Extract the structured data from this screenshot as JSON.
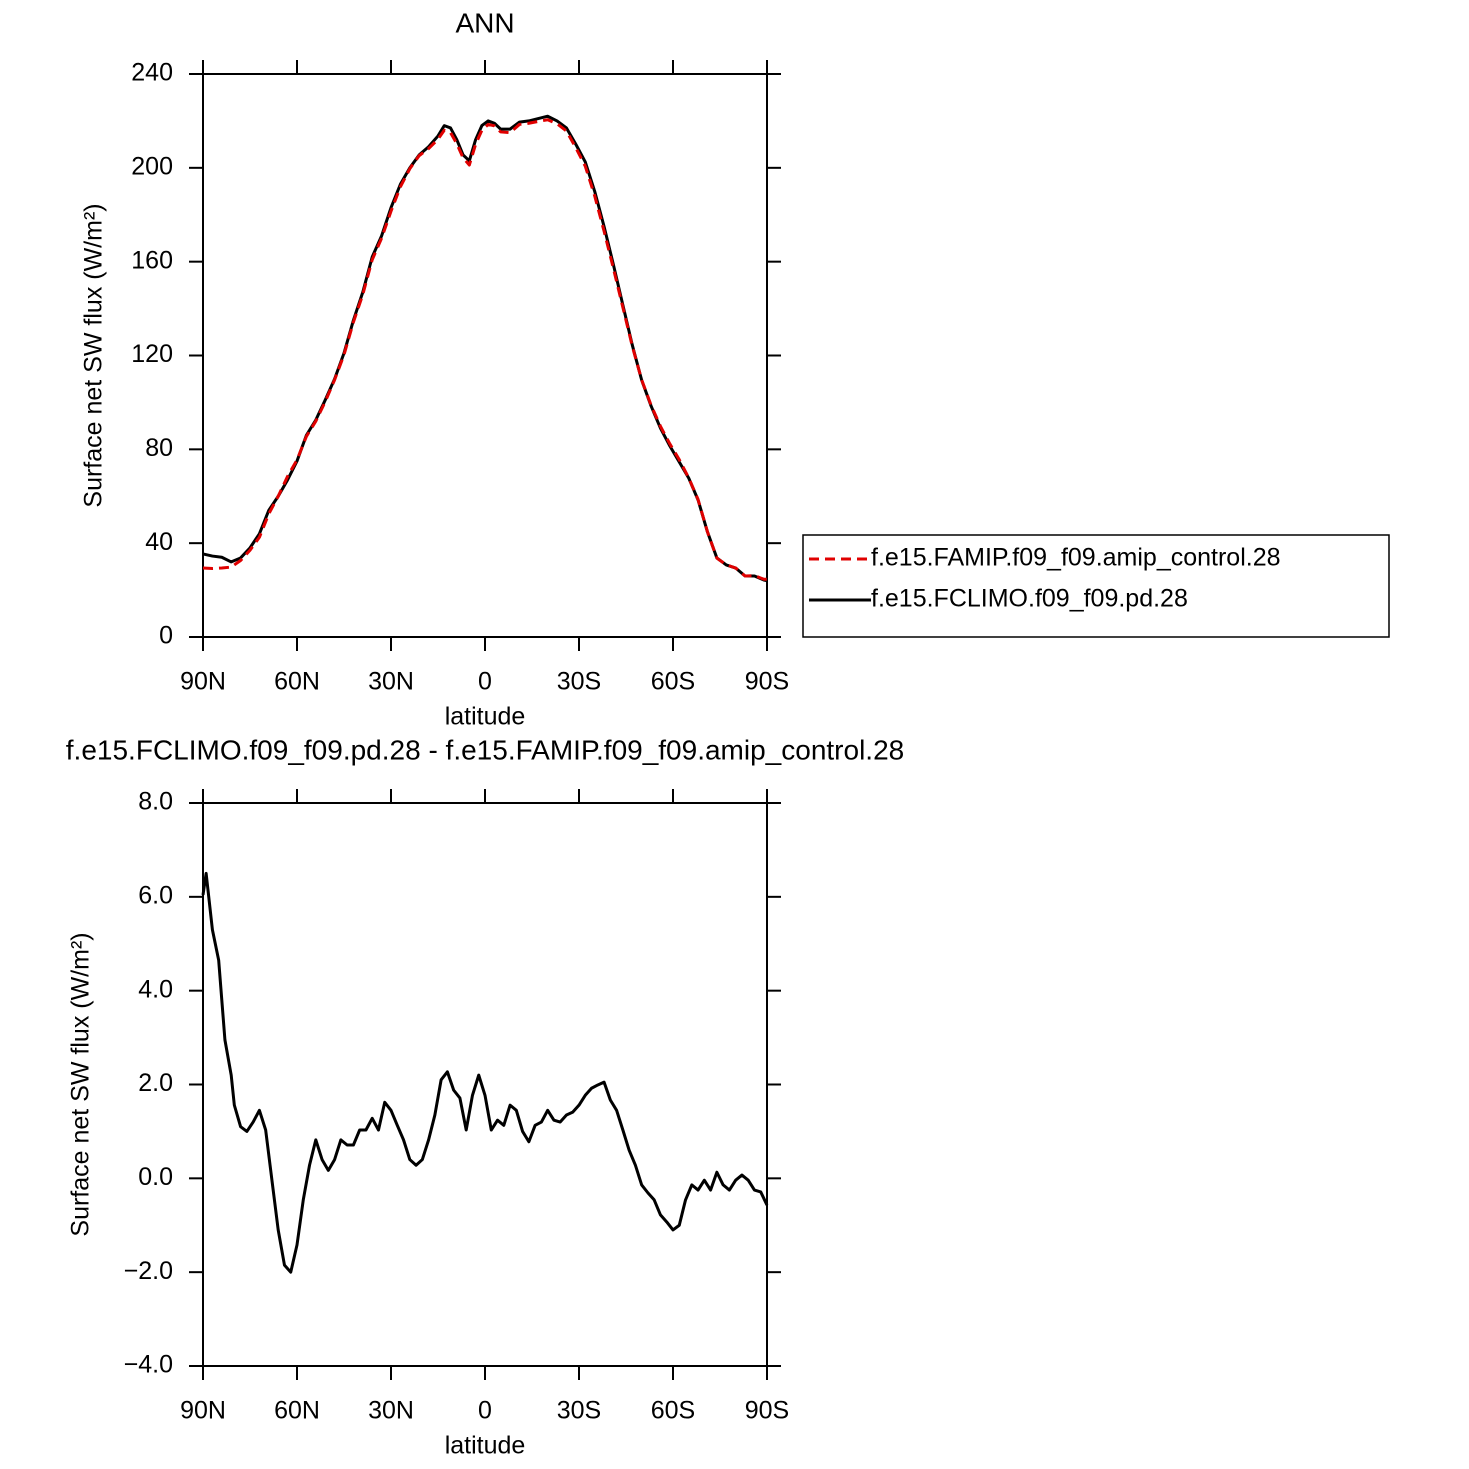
{
  "chart_data": [
    {
      "type": "line",
      "title": "ANN",
      "xlabel": "latitude",
      "ylabel": "Surface net SW flux (W/m²)",
      "x": [
        90,
        87,
        84,
        81,
        78,
        75,
        72,
        69,
        66,
        63,
        60,
        57,
        54,
        51,
        48,
        45,
        42,
        39,
        36,
        33,
        30,
        27,
        24,
        21,
        18,
        15,
        13,
        11,
        9,
        7,
        5,
        3,
        1,
        -1,
        -3,
        -5,
        -8,
        -11,
        -14,
        -17,
        -20,
        -23,
        -26,
        -29,
        -32,
        -35,
        -38,
        -41,
        -44,
        -47,
        -50,
        -53,
        -56,
        -59,
        -62,
        -65,
        -68,
        -71,
        -74,
        -77,
        -80,
        -83,
        -86,
        -89,
        -90
      ],
      "series": [
        {
          "name": "f.e15.FAMIP.f09_f09.amip_control.28",
          "color": "#e00000",
          "line_style": "dashed",
          "values": [
            29.4,
            29.2,
            29.4,
            29.8,
            32.6,
            37,
            42.5,
            52.5,
            60,
            68.5,
            75.5,
            85.5,
            92,
            100.3,
            109.6,
            120.3,
            134.2,
            146,
            160.8,
            170,
            181.5,
            191.9,
            199.6,
            205.2,
            208.2,
            212.2,
            216,
            215,
            210.3,
            204.3,
            201.2,
            210,
            216,
            218.5,
            217.9,
            215.3,
            215,
            218.5,
            219,
            219.8,
            220.5,
            218.8,
            215.7,
            208.5,
            200.7,
            188.1,
            173,
            157,
            140.5,
            124,
            109.6,
            98.8,
            89.8,
            82.3,
            75.6,
            67.9,
            58.6,
            44.8,
            33.6,
            30.8,
            29.4,
            26,
            26.2,
            24.6,
            24.6
          ]
        },
        {
          "name": "f.e15.FCLIMO.f09_f09.pd.28",
          "color": "#000000",
          "line_style": "solid",
          "values": [
            35.4,
            34.5,
            34,
            32,
            33.7,
            38,
            44,
            54,
            60,
            67,
            75,
            86,
            92.5,
            101,
            110,
            121,
            135,
            147,
            162,
            171,
            183,
            193,
            200,
            205.5,
            209,
            213.6,
            218,
            217,
            212,
            205.5,
            203,
            212,
            218,
            220,
            219,
            216.5,
            216.5,
            219.5,
            220,
            221,
            222,
            220,
            217,
            210,
            202.5,
            190,
            175,
            158.6,
            141.5,
            124.5,
            109.5,
            98.5,
            89,
            81.4,
            74.6,
            67.8,
            58.4,
            44.8,
            33.7,
            30.7,
            29.4,
            26,
            26,
            24.3,
            24
          ]
        }
      ],
      "xlim": [
        90,
        -90
      ],
      "xticks": [
        {
          "value": 90,
          "label": "90N"
        },
        {
          "value": 60,
          "label": "60N"
        },
        {
          "value": 30,
          "label": "30N"
        },
        0,
        {
          "value": -30,
          "label": "30S"
        },
        {
          "value": -60,
          "label": "60S"
        },
        {
          "value": -90,
          "label": "90S"
        }
      ],
      "ylim": [
        0,
        240
      ],
      "yticks": [
        0,
        40,
        80,
        120,
        160,
        200,
        240
      ],
      "legend": "right"
    },
    {
      "type": "line",
      "title": "f.e15.FCLIMO.f09_f09.pd.28 - f.e15.FAMIP.f09_f09.amip_control.28",
      "xlabel": "latitude",
      "ylabel": "Surface net SW flux (W/m²)",
      "x": [
        90,
        89,
        87,
        85,
        83,
        81,
        80,
        78,
        76,
        74,
        72,
        70,
        68,
        66,
        64,
        62,
        60,
        58,
        56,
        54,
        52,
        50,
        48,
        46,
        44,
        42,
        40,
        38,
        36,
        34,
        32,
        30,
        28,
        26,
        24,
        22,
        20,
        18,
        16,
        14,
        12,
        10,
        8,
        6,
        4,
        2,
        0,
        -2,
        -4,
        -6,
        -8,
        -10,
        -12,
        -14,
        -16,
        -18,
        -20,
        -22,
        -24,
        -26,
        -28,
        -30,
        -32,
        -34,
        -36,
        -38,
        -40,
        -42,
        -44,
        -46,
        -48,
        -50,
        -52,
        -54,
        -56,
        -58,
        -60,
        -62,
        -64,
        -66,
        -68,
        -70,
        -72,
        -74,
        -76,
        -78,
        -80,
        -82,
        -84,
        -86,
        -88,
        -90
      ],
      "color": "#000000",
      "values": [
        6.04,
        6.5,
        5.3,
        4.65,
        2.95,
        2.2,
        1.56,
        1.1,
        1.0,
        1.2,
        1.45,
        1.03,
        -0.04,
        -1.1,
        -1.85,
        -2.0,
        -1.42,
        -0.46,
        0.28,
        0.82,
        0.4,
        0.17,
        0.4,
        0.82,
        0.71,
        0.71,
        1.03,
        1.03,
        1.28,
        1.03,
        1.62,
        1.45,
        1.13,
        0.82,
        0.4,
        0.28,
        0.4,
        0.82,
        1.35,
        2.1,
        2.27,
        1.88,
        1.71,
        1.03,
        1.77,
        2.2,
        1.77,
        1.03,
        1.24,
        1.13,
        1.56,
        1.45,
        1.0,
        0.78,
        1.13,
        1.2,
        1.45,
        1.24,
        1.2,
        1.35,
        1.41,
        1.56,
        1.77,
        1.92,
        1.99,
        2.05,
        1.67,
        1.45,
        1.03,
        0.6,
        0.28,
        -0.14,
        -0.31,
        -0.46,
        -0.78,
        -0.93,
        -1.1,
        -1.0,
        -0.46,
        -0.14,
        -0.25,
        -0.04,
        -0.25,
        0.13,
        -0.14,
        -0.25,
        -0.04,
        0.07,
        -0.04,
        -0.25,
        -0.29,
        -0.57
      ],
      "xlim": [
        90,
        -90
      ],
      "xticks": [
        {
          "value": 90,
          "label": "90N"
        },
        {
          "value": 60,
          "label": "60N"
        },
        {
          "value": 30,
          "label": "30N"
        },
        0,
        {
          "value": -30,
          "label": "30S"
        },
        {
          "value": -60,
          "label": "60S"
        },
        {
          "value": -90,
          "label": "90S"
        }
      ],
      "ylim": [
        -4,
        8
      ],
      "yticks": [
        {
          "value": -4,
          "label": "−4.0"
        },
        {
          "value": -2,
          "label": "−2.0"
        },
        {
          "value": 0,
          "label": "0.0"
        },
        {
          "value": 2,
          "label": "2.0"
        },
        {
          "value": 4,
          "label": "4.0"
        },
        {
          "value": 6,
          "label": "6.0"
        },
        {
          "value": 8,
          "label": "8.0"
        }
      ]
    }
  ]
}
